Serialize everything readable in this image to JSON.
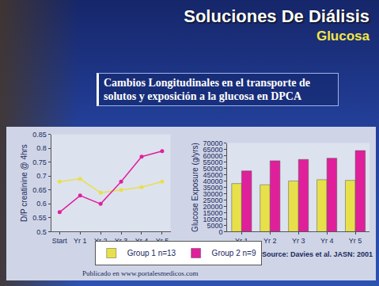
{
  "slide": {
    "title": "Soluciones De Diálisis",
    "subtitle": "Glucosa",
    "heading": "Cambios Longitudinales en el  transporte de solutos y exposición a la glucosa en DPCA",
    "source": "Source: Davies et al. JASN: 2001",
    "footer": "Publicado en www.portalesmedicos.com"
  },
  "chart_data": [
    {
      "type": "line",
      "y_label": "D/P creatinine @ 4hrs",
      "categories": [
        "Start",
        "Yr 1",
        "Yr 2",
        "Yr 3",
        "Yr 4",
        "Yr 5"
      ],
      "series": [
        {
          "name": "Group 1 n=13",
          "color": "#e8e04a",
          "values": [
            0.68,
            0.69,
            0.64,
            0.65,
            0.66,
            0.68
          ]
        },
        {
          "name": "Group 2 n=9",
          "color": "#e0209a",
          "values": [
            0.57,
            0.63,
            0.6,
            0.68,
            0.77,
            0.79
          ]
        }
      ],
      "ylim": [
        0.5,
        0.85
      ],
      "yticks": [
        0.5,
        0.55,
        0.6,
        0.65,
        0.7,
        0.75,
        0.8,
        0.85
      ],
      "marker": "circle",
      "grid": false
    },
    {
      "type": "bar",
      "y_label": "Glucose Exposure (g/yrs)",
      "categories": [
        "Yr 1",
        "Yr 2",
        "Yr 3",
        "Yr 4",
        "Yr 5"
      ],
      "series": [
        {
          "name": "Group 1 n=13",
          "color": "#e8e04a",
          "values": [
            38000,
            37000,
            40000,
            41000,
            40500
          ]
        },
        {
          "name": "Group 2 n=9",
          "color": "#e0209a",
          "values": [
            48000,
            56000,
            57000,
            58000,
            64000
          ]
        }
      ],
      "ylim": [
        0,
        70000
      ],
      "yticks": [
        0,
        5000,
        10000,
        15000,
        20000,
        25000,
        30000,
        35000,
        40000,
        45000,
        50000,
        55000,
        60000,
        65000,
        70000
      ],
      "grid": false,
      "legend": "bottom"
    }
  ]
}
